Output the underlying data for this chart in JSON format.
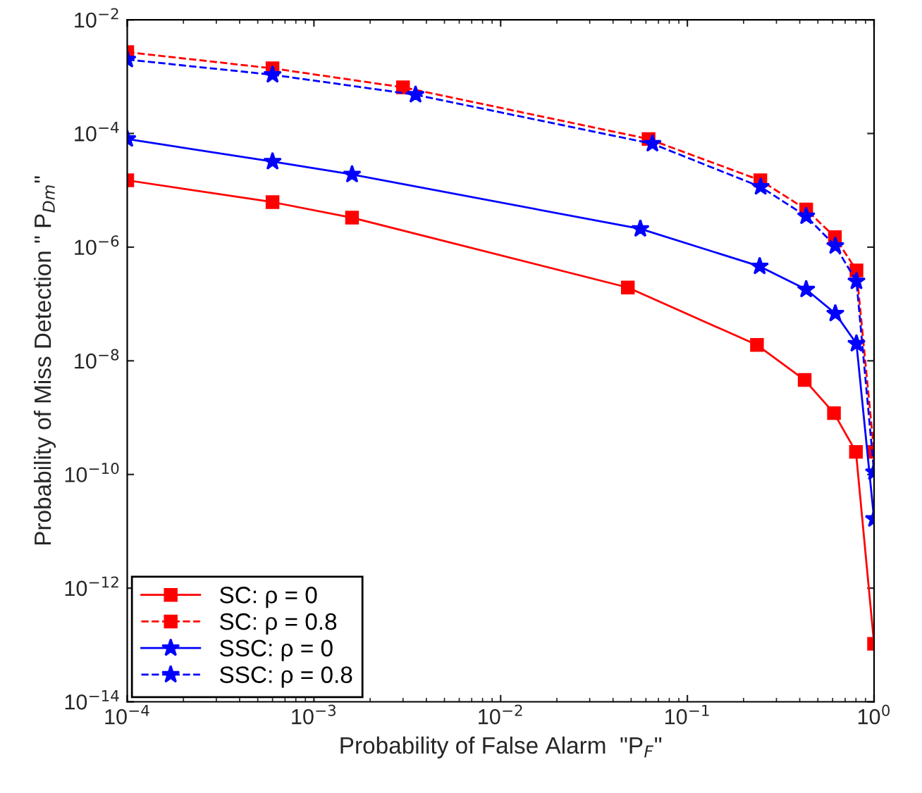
{
  "chart_data": {
    "type": "line",
    "xlabel": "Probability of False Alarm  \"P$_{F}$\"",
    "ylabel": "Probability of Miss Detection \" P$_{Dm}$\"",
    "log": "xy",
    "grid": false,
    "legend": "bottom left",
    "xlim": [
      0.0001,
      1
    ],
    "ylim": [
      1e-14,
      0.01
    ],
    "xticks": [
      {
        "value": 0.0001,
        "label": "10$^{−4}$"
      },
      {
        "value": 0.001,
        "label": "10$^{−3}$"
      },
      {
        "value": 0.01,
        "label": "10$^{−2}$"
      },
      {
        "value": 0.1,
        "label": "10$^{−1}$"
      },
      {
        "value": 1,
        "label": "10$^{0}$"
      }
    ],
    "yticks": [
      {
        "value": 1e-14,
        "label": "10$^{−14}$"
      },
      {
        "value": 1e-12,
        "label": "10$^{−12}$"
      },
      {
        "value": 1e-10,
        "label": "10$^{−10}$"
      },
      {
        "value": 1e-08,
        "label": "10$^{−8}$"
      },
      {
        "value": 1e-06,
        "label": "10$^{−6}$"
      },
      {
        "value": 0.0001,
        "label": "10$^{−4}$"
      },
      {
        "value": 0.01,
        "label": "10$^{−2}$"
      }
    ],
    "series": [
      {
        "name": "SC: ρ = 0",
        "color": "#ff0000",
        "marker": "square",
        "line_style": "solid",
        "x": [
          0.0001,
          0.0006,
          0.0016,
          0.048,
          0.236,
          0.425,
          0.61,
          0.8,
          1
        ],
        "values": [
          1.5e-05,
          6.2e-06,
          3.3e-06,
          1.95e-07,
          1.9e-08,
          4.6e-09,
          1.2e-09,
          2.5e-10,
          1.05e-13
        ]
      },
      {
        "name": "SC: ρ = 0.8",
        "color": "#ff0000",
        "marker": "square",
        "line_style": "dashed",
        "x": [
          0.0001,
          0.0006,
          0.003,
          0.062,
          0.246,
          0.433,
          0.617,
          0.805,
          1
        ],
        "values": [
          0.0027,
          0.0014,
          0.00065,
          8e-05,
          1.5e-05,
          4.6e-06,
          1.5e-06,
          3.9e-07,
          2.5e-10
        ]
      },
      {
        "name": "SSC: ρ = 0",
        "color": "#0000ff",
        "marker": "star",
        "line_style": "solid",
        "x": [
          0.0001,
          0.0006,
          0.0016,
          0.056,
          0.244,
          0.433,
          0.62,
          0.805,
          1
        ],
        "values": [
          8e-05,
          3.2e-05,
          1.9e-05,
          2.1e-06,
          4.6e-07,
          1.8e-07,
          6.8e-08,
          2e-08,
          1.65e-11
        ]
      },
      {
        "name": "SSC: ρ = 0.8",
        "color": "#0000ff",
        "marker": "star",
        "line_style": "dashed",
        "x": [
          0.0001,
          0.0006,
          0.0035,
          0.065,
          0.247,
          0.433,
          0.62,
          0.805,
          1
        ],
        "values": [
          0.002,
          0.00108,
          0.00048,
          6.6e-05,
          1.15e-05,
          3.5e-06,
          1.05e-06,
          2.5e-07,
          1.1e-10
        ]
      }
    ]
  }
}
